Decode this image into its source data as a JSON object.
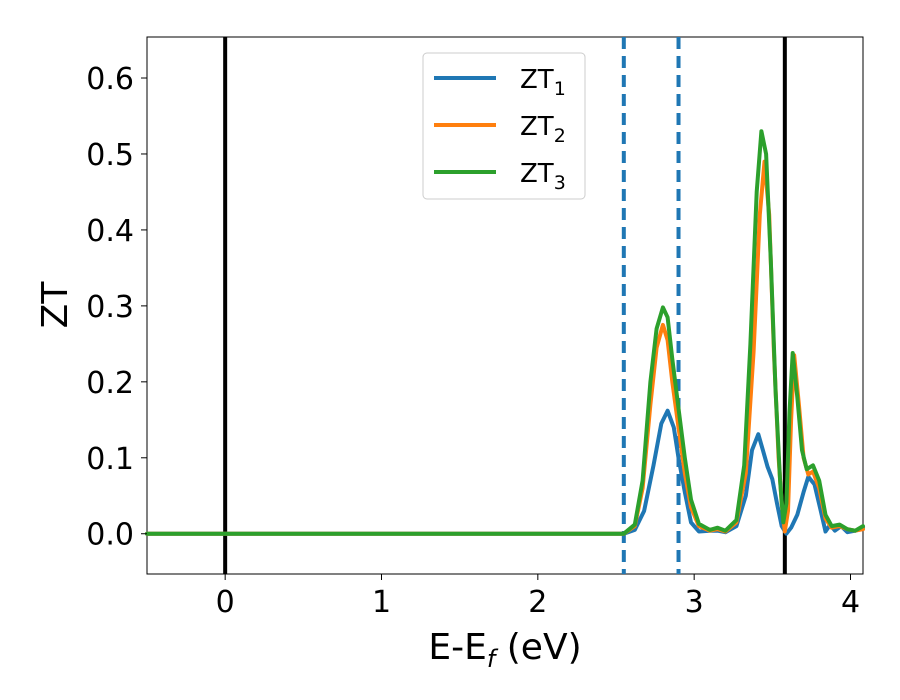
{
  "chart_data": {
    "type": "line",
    "title": "",
    "xlabel": {
      "main": "E-E",
      "sub": "f",
      "unit": " (eV)"
    },
    "ylabel": "ZT",
    "xlim": [
      -0.5,
      4.08
    ],
    "ylim": [
      -0.053,
      0.654
    ],
    "xticks": [
      0,
      1,
      2,
      3,
      4
    ],
    "xtick_labels": [
      "0",
      "1",
      "2",
      "3",
      "4"
    ],
    "yticks": [
      0.0,
      0.1,
      0.2,
      0.3,
      0.4,
      0.5,
      0.6
    ],
    "ytick_labels": [
      "0.0",
      "0.1",
      "0.2",
      "0.3",
      "0.4",
      "0.5",
      "0.6"
    ],
    "grid": false,
    "legend_position": "top-center",
    "vlines": [
      {
        "x": 0.0,
        "style": "solid",
        "color": "#000000"
      },
      {
        "x": 2.55,
        "style": "dashed",
        "color": "#1f77b4"
      },
      {
        "x": 2.9,
        "style": "dashed",
        "color": "#1f77b4"
      },
      {
        "x": 3.58,
        "style": "solid",
        "color": "#000000"
      }
    ],
    "series": [
      {
        "name": "ZT",
        "subscript": "1",
        "color": "#1f77b4",
        "points": [
          [
            -0.5,
            0
          ],
          [
            2.55,
            0
          ],
          [
            2.62,
            0.005
          ],
          [
            2.68,
            0.03
          ],
          [
            2.74,
            0.09
          ],
          [
            2.79,
            0.145
          ],
          [
            2.83,
            0.162
          ],
          [
            2.87,
            0.14
          ],
          [
            2.9,
            0.1
          ],
          [
            2.94,
            0.055
          ],
          [
            2.98,
            0.015
          ],
          [
            3.03,
            0.003
          ],
          [
            3.1,
            0.004
          ],
          [
            3.15,
            0.004
          ],
          [
            3.2,
            0.002
          ],
          [
            3.27,
            0.01
          ],
          [
            3.33,
            0.05
          ],
          [
            3.37,
            0.11
          ],
          [
            3.41,
            0.131
          ],
          [
            3.44,
            0.11
          ],
          [
            3.47,
            0.088
          ],
          [
            3.5,
            0.072
          ],
          [
            3.53,
            0.04
          ],
          [
            3.56,
            0.01
          ],
          [
            3.59,
            0.0
          ],
          [
            3.62,
            0.008
          ],
          [
            3.66,
            0.025
          ],
          [
            3.7,
            0.055
          ],
          [
            3.73,
            0.075
          ],
          [
            3.77,
            0.065
          ],
          [
            3.81,
            0.03
          ],
          [
            3.84,
            0.003
          ],
          [
            3.87,
            0.012
          ],
          [
            3.9,
            0.004
          ],
          [
            3.94,
            0.01
          ],
          [
            3.98,
            0.002
          ],
          [
            4.03,
            0.004
          ],
          [
            4.08,
            0.008
          ]
        ]
      },
      {
        "name": "ZT",
        "subscript": "2",
        "color": "#ff7f0e",
        "points": [
          [
            -0.5,
            0
          ],
          [
            2.55,
            0
          ],
          [
            2.62,
            0.01
          ],
          [
            2.67,
            0.06
          ],
          [
            2.72,
            0.17
          ],
          [
            2.76,
            0.245
          ],
          [
            2.8,
            0.275
          ],
          [
            2.83,
            0.255
          ],
          [
            2.86,
            0.2
          ],
          [
            2.9,
            0.14
          ],
          [
            2.94,
            0.08
          ],
          [
            2.98,
            0.035
          ],
          [
            3.03,
            0.01
          ],
          [
            3.1,
            0.004
          ],
          [
            3.15,
            0.006
          ],
          [
            3.2,
            0.003
          ],
          [
            3.27,
            0.015
          ],
          [
            3.33,
            0.08
          ],
          [
            3.38,
            0.24
          ],
          [
            3.42,
            0.42
          ],
          [
            3.45,
            0.49
          ],
          [
            3.48,
            0.42
          ],
          [
            3.51,
            0.24
          ],
          [
            3.54,
            0.1
          ],
          [
            3.56,
            0.04
          ],
          [
            3.58,
            0.003
          ],
          [
            3.6,
            0.03
          ],
          [
            3.62,
            0.15
          ],
          [
            3.64,
            0.235
          ],
          [
            3.67,
            0.17
          ],
          [
            3.7,
            0.1
          ],
          [
            3.73,
            0.078
          ],
          [
            3.76,
            0.082
          ],
          [
            3.8,
            0.06
          ],
          [
            3.84,
            0.02
          ],
          [
            3.88,
            0.008
          ],
          [
            3.93,
            0.01
          ],
          [
            3.98,
            0.006
          ],
          [
            4.03,
            0.004
          ],
          [
            4.08,
            0.006
          ]
        ]
      },
      {
        "name": "ZT",
        "subscript": "3",
        "color": "#2ca02c",
        "points": [
          [
            -0.5,
            0
          ],
          [
            2.55,
            0
          ],
          [
            2.62,
            0.012
          ],
          [
            2.67,
            0.07
          ],
          [
            2.72,
            0.2
          ],
          [
            2.76,
            0.27
          ],
          [
            2.8,
            0.298
          ],
          [
            2.83,
            0.285
          ],
          [
            2.86,
            0.23
          ],
          [
            2.9,
            0.165
          ],
          [
            2.94,
            0.1
          ],
          [
            2.98,
            0.045
          ],
          [
            3.03,
            0.013
          ],
          [
            3.1,
            0.005
          ],
          [
            3.15,
            0.008
          ],
          [
            3.2,
            0.004
          ],
          [
            3.27,
            0.018
          ],
          [
            3.32,
            0.09
          ],
          [
            3.36,
            0.25
          ],
          [
            3.4,
            0.45
          ],
          [
            3.43,
            0.53
          ],
          [
            3.46,
            0.5
          ],
          [
            3.49,
            0.36
          ],
          [
            3.52,
            0.19
          ],
          [
            3.55,
            0.07
          ],
          [
            3.57,
            0.015
          ],
          [
            3.59,
            0.04
          ],
          [
            3.61,
            0.16
          ],
          [
            3.63,
            0.238
          ],
          [
            3.66,
            0.18
          ],
          [
            3.69,
            0.11
          ],
          [
            3.72,
            0.085
          ],
          [
            3.76,
            0.09
          ],
          [
            3.8,
            0.07
          ],
          [
            3.84,
            0.025
          ],
          [
            3.88,
            0.01
          ],
          [
            3.93,
            0.012
          ],
          [
            3.98,
            0.006
          ],
          [
            4.03,
            0.004
          ],
          [
            4.08,
            0.01
          ]
        ]
      }
    ]
  }
}
